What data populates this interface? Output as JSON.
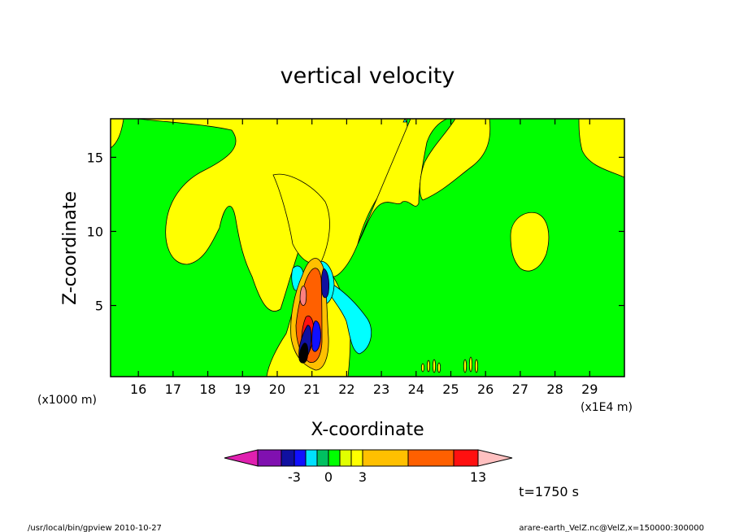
{
  "chart_data": {
    "type": "heatmap",
    "title": "vertical velocity",
    "xlabel": "X-coordinate",
    "ylabel": "Z-coordinate",
    "x_scale_label": "(x1E4 m)",
    "y_scale_label": "(x1000 m)",
    "xlim": [
      15.2,
      30.0
    ],
    "ylim": [
      0.2,
      17.6
    ],
    "x_ticks": [
      "16",
      "17",
      "18",
      "19",
      "20",
      "21",
      "22",
      "23",
      "24",
      "25",
      "26",
      "27",
      "28",
      "29"
    ],
    "y_ticks": [
      "5",
      "10",
      "15"
    ],
    "colorbar": {
      "labels": [
        {
          "text": "-3",
          "value": -3
        },
        {
          "text": "0",
          "value": 0
        },
        {
          "text": "3",
          "value": 3
        },
        {
          "text": "13",
          "value": 13
        }
      ],
      "colors": [
        "#e020b0",
        "#8010b0",
        "#1010a0",
        "#1010ff",
        "#00e0ff",
        "#00c060",
        "#00ff00",
        "#e0ff00",
        "#ffff00",
        "#ffc000",
        "#ff6000",
        "#ff1010",
        "#ff8080",
        "#ffc0c0"
      ]
    },
    "time_label": "t=1750 s"
  },
  "footer": {
    "left": "/usr/local/bin/gpview  2010-10-27",
    "right": "arare-earth_VelZ.nc@VelZ,x=150000:300000"
  },
  "colors": {
    "background_field": "#00ff00",
    "positive_weak": "#ffff00",
    "negative_weak": "#00ffff"
  }
}
